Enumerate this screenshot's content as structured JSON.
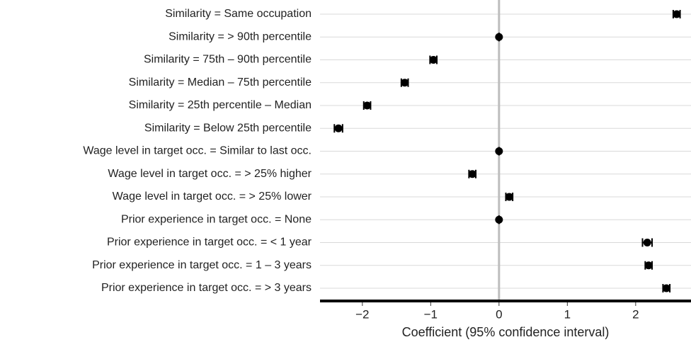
{
  "chart_data": {
    "type": "coefplot",
    "x_label": "Coefficient (95% confidence interval)",
    "categories": [
      "Similarity = Same occupation",
      "Similarity = > 90th percentile",
      "Similarity = 75th – 90th percentile",
      "Similarity = Median – 75th percentile",
      "Similarity = 25th percentile – Median",
      "Similarity = Below 25th percentile",
      "Wage level in target occ. = Similar to last occ.",
      "Wage level in target occ. = > 25% higher",
      "Wage level in target occ. = > 25% lower",
      "Prior experience in target occ. = None",
      "Prior experience in target occ. = < 1 year",
      "Prior experience in target occ. = 1 – 3 years",
      "Prior experience in target occ. = > 3 years"
    ],
    "values": [
      2.6,
      0,
      -0.96,
      -1.38,
      -1.93,
      -2.35,
      0,
      -0.39,
      0.15,
      0,
      2.17,
      2.19,
      2.45
    ],
    "errors": [
      0.05,
      0,
      0.05,
      0.05,
      0.05,
      0.06,
      0,
      0.05,
      0.05,
      0,
      0.07,
      0.05,
      0.05
    ],
    "color": "#000000",
    "xlim": [
      -2.62,
      2.81
    ],
    "xticks": [
      {
        "value": -2,
        "label": "−2"
      },
      {
        "value": -1,
        "label": "−1"
      },
      0,
      1,
      2
    ],
    "grid": true
  }
}
